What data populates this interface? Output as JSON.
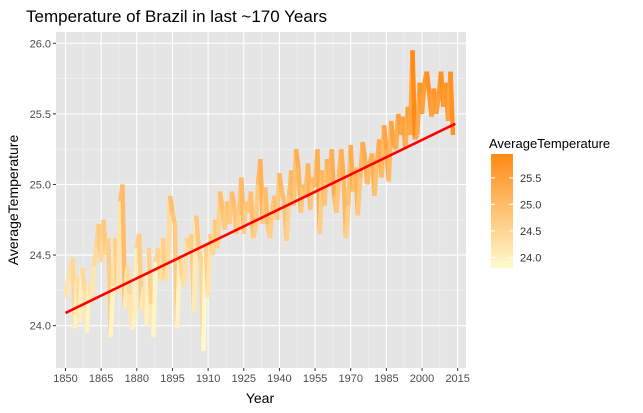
{
  "chart_data": {
    "type": "line",
    "title": "Temperature of Brazil in last ~170 Years",
    "xlabel": "Year",
    "ylabel": "AverageTemperature",
    "xlim": [
      1846,
      2018.5
    ],
    "ylim": [
      23.7,
      26.08
    ],
    "x_ticks": [
      1850,
      1865,
      1880,
      1895,
      1910,
      1925,
      1940,
      1955,
      1970,
      1985,
      2000,
      2015
    ],
    "y_ticks": [
      24.0,
      24.5,
      25.0,
      25.5,
      26.0
    ],
    "y_tick_labels": [
      "24.0",
      "24.5",
      "25.0",
      "25.5",
      "26.0"
    ],
    "grid": true,
    "panel_background": "#e5e5e5",
    "legend_position": "right",
    "color_scale": {
      "title": "AverageTemperature",
      "low_color": "#fffad0",
      "high_color": "#ff8a14",
      "range": [
        23.8,
        25.95
      ],
      "breaks": [
        24.0,
        24.5,
        25.0,
        25.5
      ],
      "break_labels": [
        "24.0",
        "24.5",
        "25.0",
        "25.5"
      ]
    },
    "series": [
      {
        "x": [
          1850,
          1851,
          1852,
          1853,
          1854,
          1855,
          1856,
          1857,
          1858,
          1859,
          1860,
          1861,
          1862,
          1863,
          1864,
          1865,
          1866,
          1867,
          1868,
          1869,
          1870,
          1871,
          1872,
          1873,
          1874,
          1875,
          1876,
          1877,
          1878,
          1879,
          1880,
          1881,
          1882,
          1883,
          1884,
          1885,
          1886,
          1887,
          1888,
          1889,
          1890,
          1891,
          1892,
          1893,
          1894,
          1895,
          1896,
          1897,
          1898,
          1899,
          1900,
          1901,
          1902,
          1903,
          1904,
          1905,
          1906,
          1907,
          1908,
          1909,
          1910,
          1911,
          1912,
          1913,
          1914,
          1915,
          1916,
          1917,
          1918,
          1919,
          1920,
          1921,
          1922,
          1923,
          1924,
          1925,
          1926,
          1927,
          1928,
          1929,
          1930,
          1931,
          1932,
          1933,
          1934,
          1935,
          1936,
          1937,
          1938,
          1939,
          1940,
          1941,
          1942,
          1943,
          1944,
          1945,
          1946,
          1947,
          1948,
          1949,
          1950,
          1951,
          1952,
          1953,
          1954,
          1955,
          1956,
          1957,
          1958,
          1959,
          1960,
          1961,
          1962,
          1963,
          1964,
          1965,
          1966,
          1967,
          1968,
          1969,
          1970,
          1971,
          1972,
          1973,
          1974,
          1975,
          1976,
          1977,
          1978,
          1979,
          1980,
          1981,
          1982,
          1983,
          1984,
          1985,
          1986,
          1987,
          1988,
          1989,
          1990,
          1991,
          1992,
          1993,
          1994,
          1995,
          1996,
          1997,
          1998,
          1999,
          2000,
          2001,
          2002,
          2003,
          2004,
          2005,
          2006,
          2007,
          2008,
          2009,
          2010,
          2011,
          2012,
          2013
        ],
        "y": [
          24.2,
          24.32,
          24.38,
          24.48,
          23.98,
          24.35,
          24.02,
          24.41,
          24.25,
          23.95,
          24.3,
          24.18,
          24.42,
          24.55,
          24.72,
          24.45,
          24.75,
          24.5,
          24.62,
          23.92,
          24.28,
          24.62,
          24.22,
          24.88,
          25.0,
          24.12,
          24.42,
          24.22,
          23.97,
          24.05,
          24.55,
          24.65,
          24.12,
          24.28,
          24.0,
          24.55,
          24.15,
          23.92,
          24.45,
          24.55,
          24.32,
          24.62,
          24.32,
          24.42,
          24.92,
          24.8,
          24.72,
          23.98,
          24.5,
          24.35,
          24.28,
          24.62,
          24.55,
          24.65,
          24.1,
          24.78,
          24.55,
          24.45,
          23.82,
          24.58,
          24.2,
          24.65,
          24.5,
          24.75,
          24.55,
          24.95,
          24.82,
          24.68,
          24.88,
          24.72,
          24.95,
          24.85,
          24.65,
          24.8,
          25.05,
          24.65,
          24.88,
          24.8,
          24.95,
          24.62,
          24.7,
          25.0,
          25.18,
          24.72,
          24.98,
          24.72,
          24.62,
          24.82,
          24.92,
          24.75,
          25.08,
          24.95,
          24.88,
          24.6,
          24.9,
          25.1,
          24.85,
          25.25,
          25.12,
          24.8,
          25.0,
          24.92,
          25.15,
          24.82,
          25.05,
          24.98,
          25.25,
          24.65,
          25.1,
          24.85,
          25.18,
          25.0,
          25.25,
          24.92,
          24.8,
          25.05,
          25.25,
          25.05,
          24.62,
          24.85,
          25.28,
          24.95,
          25.12,
          24.78,
          25.05,
          25.3,
          25.18,
          25.0,
          25.15,
          25.22,
          24.92,
          25.15,
          25.32,
          25.05,
          25.42,
          25.25,
          25.02,
          25.45,
          25.28,
          25.25,
          25.5,
          25.35,
          25.48,
          25.25,
          25.55,
          25.35,
          25.95,
          25.32,
          25.35,
          25.72,
          25.5,
          25.72,
          25.8,
          25.65,
          25.48,
          25.68,
          25.5,
          25.62,
          25.8,
          25.55,
          25.72,
          25.45,
          25.8,
          25.35
        ]
      }
    ],
    "trend_line": {
      "x": [
        1850,
        2014
      ],
      "y": [
        24.09,
        25.43
      ],
      "color": "#ff0000"
    }
  }
}
